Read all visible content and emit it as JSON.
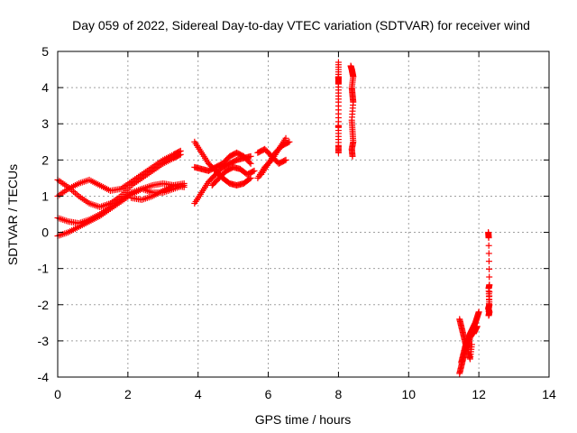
{
  "chart_data": {
    "type": "scatter",
    "title": "Day 059 of 2022, Sidereal Day-to-day VTEC variation (SDTVAR) for receiver wind",
    "xlabel": "GPS time / hours",
    "ylabel": "SDTVAR / TECUs",
    "xlim": [
      0,
      14
    ],
    "ylim": [
      -4,
      5
    ],
    "xticks": [
      "0",
      "2",
      "4",
      "6",
      "8",
      "10",
      "12",
      "14"
    ],
    "yticks": [
      "-4",
      "-3",
      "-2",
      "-1",
      "0",
      "1",
      "2",
      "3",
      "4",
      "5"
    ],
    "grid": true,
    "marker": "plus",
    "color": "#ff0000",
    "series": [
      {
        "name": "SDTVAR",
        "segments": [
          {
            "x": [
              0.0,
              0.3,
              0.6,
              0.9,
              1.2,
              1.5,
              1.8,
              2.1,
              2.4,
              2.7,
              3.0,
              3.3,
              3.5
            ],
            "y": [
              1.45,
              1.25,
              1.0,
              0.8,
              0.7,
              0.8,
              1.0,
              1.3,
              1.5,
              1.7,
              1.9,
              2.05,
              2.15
            ]
          },
          {
            "x": [
              0.0,
              0.3,
              0.6,
              0.9,
              1.2,
              1.5,
              1.8,
              2.1,
              2.4,
              2.7,
              3.0,
              3.3,
              3.5
            ],
            "y": [
              1.0,
              1.2,
              1.35,
              1.45,
              1.3,
              1.15,
              1.2,
              1.4,
              1.6,
              1.8,
              2.0,
              2.15,
              2.25
            ]
          },
          {
            "x": [
              0.0,
              0.3,
              0.6,
              0.9,
              1.2,
              1.5,
              1.8,
              2.1,
              2.4,
              2.7,
              3.0,
              3.3,
              3.6
            ],
            "y": [
              0.4,
              0.3,
              0.25,
              0.35,
              0.5,
              0.7,
              0.9,
              1.1,
              1.2,
              1.1,
              1.1,
              1.2,
              1.3
            ]
          },
          {
            "x": [
              0.0,
              0.3,
              0.6,
              0.9,
              1.2,
              1.5,
              1.8,
              2.1,
              2.4,
              2.7,
              3.0,
              3.3,
              3.6
            ],
            "y": [
              -0.1,
              0.0,
              0.15,
              0.3,
              0.45,
              0.65,
              0.85,
              1.05,
              1.2,
              1.3,
              1.35,
              1.3,
              1.25
            ]
          },
          {
            "x": [
              2.1,
              2.4,
              2.7,
              3.0,
              3.3,
              3.6
            ],
            "y": [
              0.95,
              0.9,
              1.0,
              1.15,
              1.3,
              1.35
            ]
          },
          {
            "x": [
              3.9,
              4.1,
              4.3,
              4.5,
              4.7,
              4.9,
              5.1,
              5.3,
              5.5
            ],
            "y": [
              0.8,
              1.1,
              1.4,
              1.6,
              1.8,
              1.9,
              2.0,
              2.05,
              2.1
            ]
          },
          {
            "x": [
              3.9,
              4.1,
              4.3,
              4.5,
              4.7,
              4.9,
              5.1,
              5.3,
              5.5
            ],
            "y": [
              2.5,
              2.2,
              1.9,
              1.7,
              1.5,
              1.35,
              1.3,
              1.35,
              1.5
            ]
          },
          {
            "x": [
              3.9,
              4.1,
              4.3,
              4.5,
              4.7,
              4.9,
              5.1,
              5.3,
              5.5
            ],
            "y": [
              1.8,
              1.75,
              1.7,
              1.8,
              1.9,
              2.1,
              2.2,
              2.1,
              1.9
            ]
          },
          {
            "x": [
              4.4,
              4.6,
              4.8,
              5.0,
              5.2,
              5.4,
              5.6
            ],
            "y": [
              1.3,
              1.5,
              1.7,
              1.8,
              1.75,
              1.6,
              1.7
            ]
          },
          {
            "x": [
              5.7,
              5.9,
              6.1,
              6.3,
              6.5
            ],
            "y": [
              1.5,
              1.8,
              2.0,
              2.3,
              2.6
            ]
          },
          {
            "x": [
              5.7,
              5.9,
              6.1,
              6.3,
              6.5
            ],
            "y": [
              2.2,
              2.3,
              2.1,
              1.9,
              2.0
            ]
          },
          {
            "x": [
              5.8,
              6.0,
              6.2,
              6.4,
              6.6
            ],
            "y": [
              1.6,
              1.9,
              2.2,
              2.4,
              2.5
            ]
          },
          {
            "x": [
              8.0,
              8.0,
              8.0,
              8.0,
              8.0,
              8.0,
              8.0,
              8.0,
              8.0
            ],
            "y": [
              4.7,
              4.3,
              4.25,
              4.1,
              3.6,
              2.95,
              2.9,
              2.4,
              2.2
            ]
          },
          {
            "x": [
              8.35,
              8.38,
              8.4,
              8.42,
              8.38,
              8.4,
              8.42,
              8.38,
              8.4,
              8.42,
              8.38,
              8.4
            ],
            "y": [
              4.6,
              4.5,
              4.4,
              4.3,
              4.0,
              3.8,
              3.6,
              3.1,
              2.8,
              2.5,
              2.3,
              2.1
            ]
          },
          {
            "x": [
              11.45,
              11.5,
              11.55,
              11.6,
              11.65,
              11.7,
              11.75,
              11.8,
              11.85,
              11.9,
              11.95,
              12.0
            ],
            "y": [
              -3.9,
              -3.7,
              -3.5,
              -3.3,
              -3.1,
              -2.95,
              -2.8,
              -2.7,
              -2.6,
              -2.5,
              -2.35,
              -2.2
            ]
          },
          {
            "x": [
              11.45,
              11.5,
              11.55,
              11.6,
              11.65,
              11.7,
              11.75,
              11.8,
              11.85,
              11.9,
              11.95
            ],
            "y": [
              -2.4,
              -2.6,
              -2.8,
              -3.0,
              -3.2,
              -3.1,
              -2.9,
              -2.75,
              -2.8,
              -2.7,
              -2.6
            ]
          },
          {
            "x": [
              11.5,
              11.55,
              11.6,
              11.65,
              11.7,
              11.75,
              11.8
            ],
            "y": [
              -3.6,
              -3.4,
              -3.2,
              -3.0,
              -3.3,
              -3.5,
              -3.1
            ]
          },
          {
            "x": [
              12.27,
              12.28,
              12.3,
              12.28,
              12.3,
              12.27,
              12.3,
              12.28,
              12.3
            ],
            "y": [
              0.0,
              -0.15,
              -1.45,
              -1.55,
              -2.0,
              -2.1,
              -2.2,
              -2.3,
              -1.65
            ]
          }
        ]
      }
    ]
  }
}
